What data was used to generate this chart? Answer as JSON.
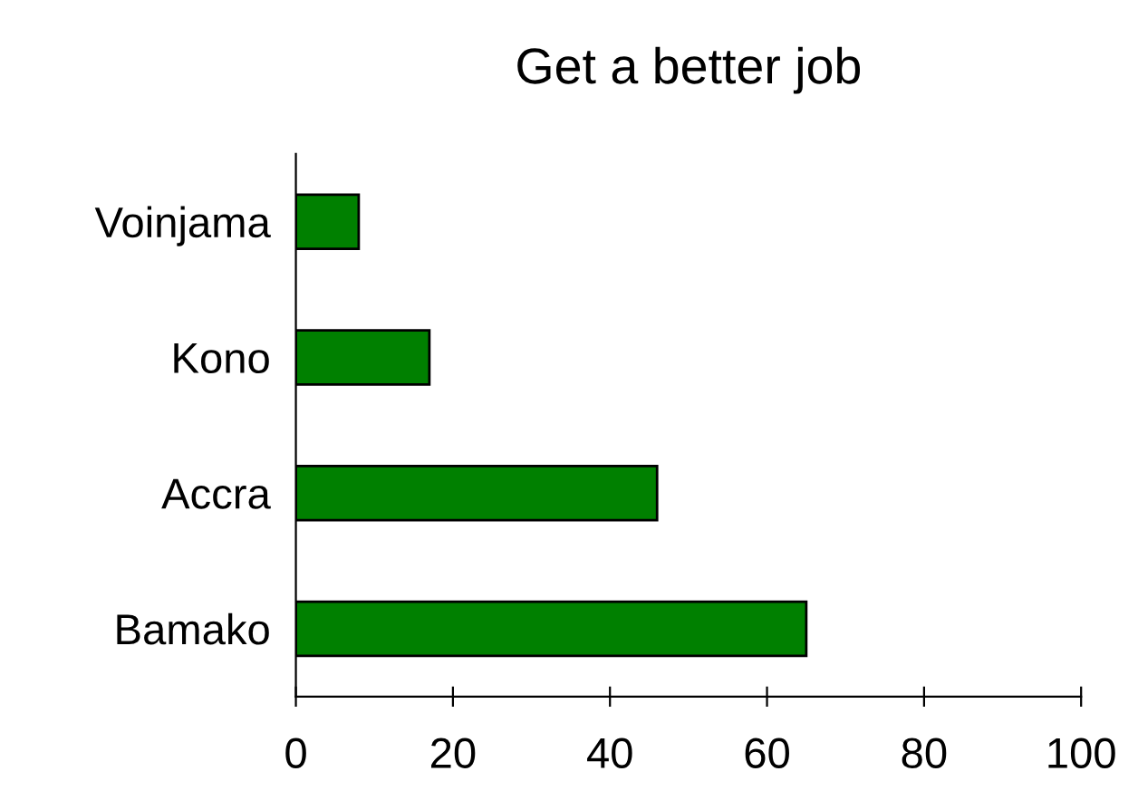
{
  "chart_data": {
    "type": "bar",
    "orientation": "horizontal",
    "title": "Get a better job",
    "categories": [
      "Voinjama",
      "Kono",
      "Accra",
      "Bamako"
    ],
    "series": [
      {
        "color": "#008000",
        "values": [
          8,
          17,
          46,
          65
        ]
      }
    ],
    "xlim": [
      0,
      100
    ],
    "xticks": [
      0,
      20,
      40,
      60,
      80,
      100
    ],
    "grid": false,
    "legend": false
  }
}
